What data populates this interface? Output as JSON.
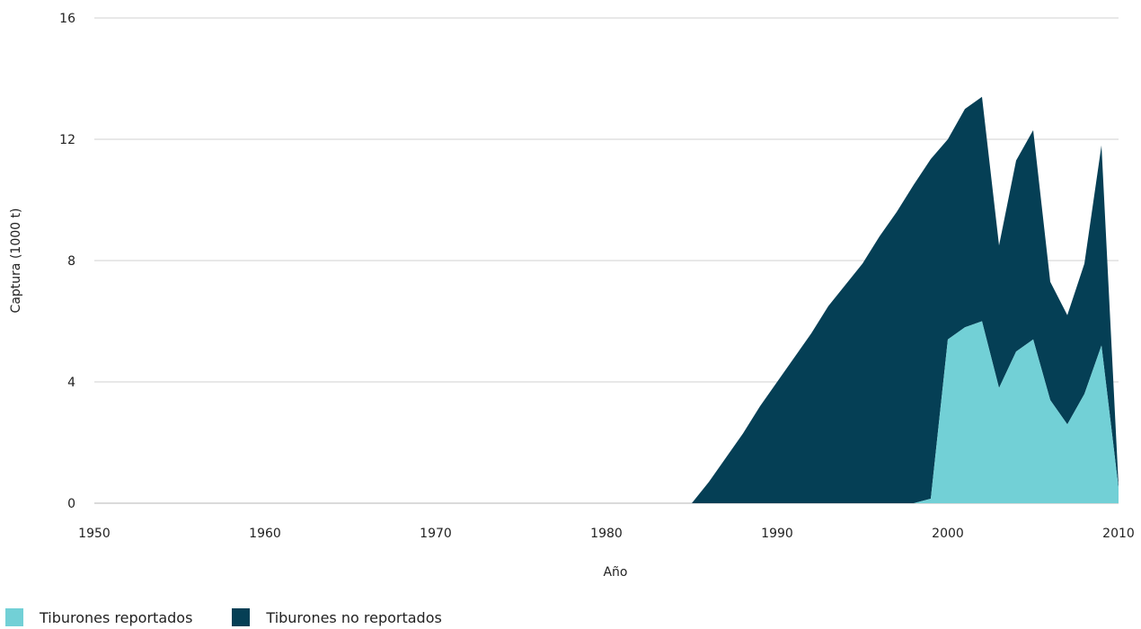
{
  "chart_data": {
    "type": "area",
    "stacked": true,
    "xlabel": "Año",
    "ylabel": "Captura (1000 t)",
    "xlim": [
      1950,
      2010
    ],
    "ylim": [
      0,
      16
    ],
    "xticks": [
      1950,
      1960,
      1970,
      1980,
      1990,
      2000,
      2010
    ],
    "yticks": [
      0,
      4,
      8,
      12,
      16
    ],
    "grid": "horizontal",
    "legend_position": "bottom-left",
    "x": [
      1985,
      1986,
      1987,
      1988,
      1989,
      1990,
      1991,
      1992,
      1993,
      1994,
      1995,
      1996,
      1997,
      1998,
      1999,
      2000,
      2001,
      2002,
      2003,
      2004,
      2005,
      2006,
      2007,
      2008,
      2009,
      2010
    ],
    "series": [
      {
        "name": "Tiburones reportados",
        "color": "#72d0d6",
        "values": [
          0,
          0,
          0,
          0,
          0,
          0,
          0,
          0,
          0,
          0,
          0,
          0,
          0,
          0,
          0.15,
          5.4,
          5.8,
          6.0,
          3.8,
          5.0,
          5.4,
          3.4,
          2.6,
          3.6,
          5.2,
          0.5
        ]
      },
      {
        "name": "Tiburones no reportados",
        "color": "#053f55",
        "values": [
          0,
          0.7,
          1.5,
          2.3,
          3.2,
          4.0,
          4.8,
          5.6,
          6.5,
          7.2,
          7.9,
          8.8,
          9.6,
          10.5,
          11.2,
          6.6,
          7.2,
          7.4,
          4.7,
          6.3,
          6.9,
          3.9,
          3.6,
          4.3,
          6.6,
          0.1
        ]
      }
    ]
  }
}
